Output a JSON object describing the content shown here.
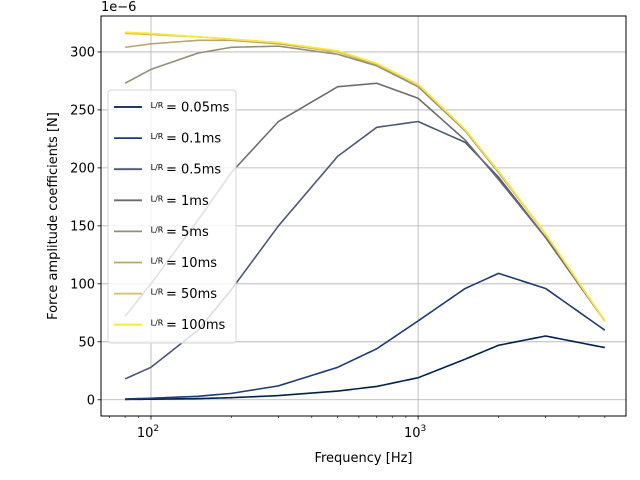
{
  "chart_data": {
    "type": "line",
    "xlabel": "Frequency [Hz]",
    "ylabel": "Force amplitude coefficients [N]",
    "y_offset_text": "1e−6",
    "xscale": "log",
    "xlim": [
      65,
      6000
    ],
    "ylim": [
      -14,
      331
    ],
    "x_ticks": [
      {
        "value": 100,
        "base": "10",
        "exp": "2"
      },
      {
        "value": 1000,
        "base": "10",
        "exp": "3"
      }
    ],
    "y_ticks": [
      0,
      50,
      100,
      150,
      200,
      250,
      300
    ],
    "grid": true,
    "legend_position": "center-left",
    "x": [
      80,
      100,
      150,
      200,
      300,
      500,
      700,
      1000,
      1500,
      2000,
      3000,
      5000
    ],
    "series": [
      {
        "name": "L/R = 0.05ms",
        "legend_frac": "L/R",
        "legend_rest": "= 0.05ms",
        "color": "#00224e",
        "values": [
          0.3,
          0.5,
          1.0,
          1.8,
          3.6,
          7.5,
          11.5,
          19,
          35,
          47,
          55,
          45
        ]
      },
      {
        "name": "L/R = 0.1ms",
        "legend_frac": "L/R",
        "legend_rest": "= 0.1ms",
        "color": "#1e3a7a",
        "values": [
          0.7,
          1.3,
          3.0,
          5.5,
          12,
          28,
          44,
          68,
          96,
          109,
          96,
          60
        ]
      },
      {
        "name": "L/R = 0.5ms",
        "legend_frac": "L/R",
        "legend_rest": "= 0.5ms",
        "color": "#4c5877",
        "values": [
          18,
          28,
          60,
          95,
          150,
          210,
          235,
          240,
          222,
          192,
          140,
          68
        ]
      },
      {
        "name": "L/R = 1ms",
        "legend_frac": "L/R",
        "legend_rest": "= 1ms",
        "color": "#6b6c71",
        "values": [
          72,
          100,
          155,
          196,
          240,
          270,
          273,
          260,
          224,
          190,
          140,
          68
        ]
      },
      {
        "name": "L/R = 5ms",
        "legend_frac": "L/R",
        "legend_rest": "= 5ms",
        "color": "#958f78",
        "values": [
          273,
          285,
          299,
          304,
          305,
          298,
          288,
          270,
          232,
          196,
          143,
          68
        ]
      },
      {
        "name": "L/R = 10ms",
        "legend_frac": "L/R",
        "legend_rest": "= 10ms",
        "color": "#b8a96a",
        "values": [
          304,
          307,
          310,
          310,
          307,
          300,
          289,
          272,
          233,
          197,
          143,
          68
        ]
      },
      {
        "name": "L/R = 50ms",
        "legend_frac": "L/R",
        "legend_rest": "= 50ms",
        "color": "#dcc04b",
        "values": [
          316,
          315,
          313,
          311,
          308,
          300,
          290,
          272,
          233,
          197,
          143,
          68
        ]
      },
      {
        "name": "L/R = 100ms",
        "legend_frac": "L/R",
        "legend_rest": "= 100ms",
        "color": "#fde737",
        "values": [
          317,
          316,
          313,
          311,
          308,
          301,
          290,
          272,
          233,
          197,
          143,
          68
        ]
      }
    ]
  }
}
